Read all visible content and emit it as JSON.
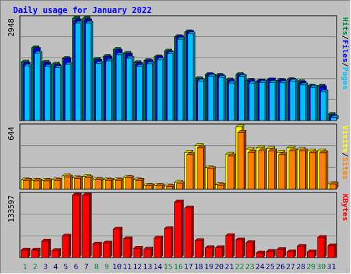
{
  "chart_data": [
    {
      "type": "bar",
      "title": "Daily usage for January 2022",
      "panel": "hits-files-pages",
      "ylabel_parts": [
        "Pages",
        "/",
        "Files",
        "/",
        "Hits"
      ],
      "ymax_label": "2948",
      "ylim": [
        0,
        2948
      ],
      "categories": [
        "1",
        "2",
        "3",
        "4",
        "5",
        "6",
        "7",
        "8",
        "9",
        "10",
        "11",
        "12",
        "13",
        "14",
        "15",
        "16",
        "17",
        "18",
        "19",
        "20",
        "21",
        "22",
        "23",
        "24",
        "25",
        "26",
        "27",
        "28",
        "29",
        "30",
        "31"
      ],
      "weekend_days": [
        "1",
        "2",
        "8",
        "9",
        "15",
        "16",
        "22",
        "23",
        "29",
        "30"
      ],
      "series": [
        {
          "name": "Hits",
          "values": [
            1690,
            2100,
            1680,
            1630,
            1790,
            2950,
            2950,
            1770,
            1850,
            2050,
            1940,
            1670,
            1730,
            1840,
            2010,
            2420,
            2560,
            1210,
            1330,
            1300,
            1170,
            1330,
            1160,
            1140,
            1170,
            1160,
            1180,
            1120,
            990,
            990,
            170
          ]
        },
        {
          "name": "Files",
          "values": [
            1630,
            2050,
            1630,
            1570,
            1760,
            2880,
            2880,
            1720,
            1810,
            2000,
            1890,
            1620,
            1700,
            1810,
            1960,
            2400,
            2540,
            1160,
            1310,
            1270,
            1130,
            1290,
            1130,
            1140,
            1170,
            1140,
            1160,
            1080,
            970,
            950,
            120
          ]
        },
        {
          "name": "Pages",
          "values": [
            1570,
            1940,
            1560,
            1530,
            1620,
            2810,
            2810,
            1650,
            1720,
            1900,
            1800,
            1560,
            1640,
            1750,
            1930,
            2350,
            2500,
            1140,
            1280,
            1240,
            1080,
            1270,
            1080,
            1100,
            1100,
            1090,
            1140,
            1030,
            960,
            830,
            90
          ]
        }
      ],
      "colors": {
        "Hits": "#008040",
        "Files": "#0000ff",
        "Pages": "#00c0ff"
      }
    },
    {
      "type": "bar",
      "panel": "visits-sites",
      "ylabel_parts": [
        "Sites",
        "/",
        "Visits"
      ],
      "ymax_label": "644",
      "ylim": [
        0,
        644
      ],
      "categories": [
        "1",
        "2",
        "3",
        "4",
        "5",
        "6",
        "7",
        "8",
        "9",
        "10",
        "11",
        "12",
        "13",
        "14",
        "15",
        "16",
        "17",
        "18",
        "19",
        "20",
        "21",
        "22",
        "23",
        "24",
        "25",
        "26",
        "27",
        "28",
        "29",
        "30",
        "31"
      ],
      "series": [
        {
          "name": "Visits",
          "values": [
            95,
            90,
            90,
            95,
            135,
            115,
            130,
            100,
            95,
            95,
            120,
            95,
            40,
            40,
            30,
            70,
            380,
            450,
            220,
            45,
            360,
            650,
            410,
            425,
            420,
            380,
            425,
            410,
            395,
            395,
            55
          ]
        },
        {
          "name": "Sites",
          "values": [
            90,
            85,
            85,
            90,
            125,
            110,
            115,
            95,
            90,
            90,
            115,
            90,
            35,
            35,
            25,
            55,
            355,
            425,
            210,
            40,
            340,
            585,
            380,
            395,
            395,
            355,
            395,
            395,
            375,
            375,
            50
          ]
        }
      ],
      "colors": {
        "Visits": "#ffff00",
        "Sites": "#ff8000"
      }
    },
    {
      "type": "bar",
      "panel": "kbytes",
      "ylabel_parts": [
        "KBytes"
      ],
      "ymax_label": "133597",
      "ylim": [
        0,
        133597
      ],
      "categories": [
        "1",
        "2",
        "3",
        "4",
        "5",
        "6",
        "7",
        "8",
        "9",
        "10",
        "11",
        "12",
        "13",
        "14",
        "15",
        "16",
        "17",
        "18",
        "19",
        "20",
        "21",
        "22",
        "23",
        "24",
        "25",
        "26",
        "27",
        "28",
        "29",
        "30",
        "31"
      ],
      "series": [
        {
          "name": "KBytes",
          "values": [
            16000,
            16000,
            35000,
            15000,
            46000,
            133597,
            133597,
            29000,
            31000,
            61000,
            40000,
            20000,
            18000,
            42000,
            62000,
            119000,
            106000,
            36000,
            21000,
            21000,
            47000,
            38000,
            32000,
            10000,
            13000,
            17000,
            12000,
            24000,
            12000,
            43000,
            25000
          ]
        }
      ],
      "colors": {
        "KBytes": "#ff0000"
      }
    }
  ],
  "colors": {
    "background": "#c0c0c0",
    "title": "#0000ff",
    "axis_text": "#000000",
    "weekday_label": "#000080",
    "weekend_label": "#008040",
    "grid": "#808080"
  }
}
